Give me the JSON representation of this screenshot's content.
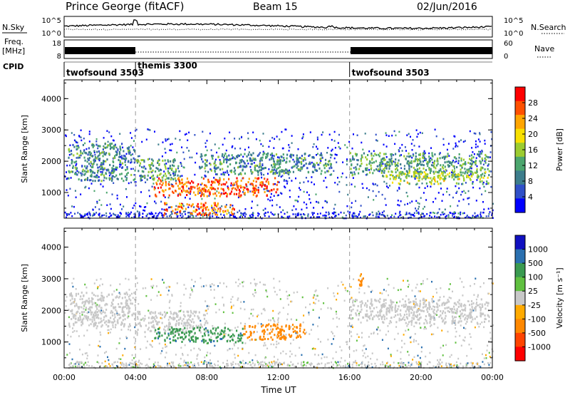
{
  "header": {
    "station": "Prince George (fitACF)",
    "beam": "Beam 15",
    "date": "02/Jun/2016"
  },
  "panel_labels": {
    "nsky": "N.Sky",
    "nsearch": "N.Search",
    "freq_line1": "Freq.",
    "freq_line2": "[MHz]",
    "nave": "Nave",
    "cpid": "CPID"
  },
  "noise_axis": {
    "left_top": "10^5",
    "left_bottom": "10^0",
    "right_top": "10^5",
    "right_bottom": "10^0"
  },
  "freq_axis": {
    "left_top": "18",
    "left_bottom": "8",
    "right_top": "60",
    "right_bottom": "0"
  },
  "cpid_segments": [
    {
      "label": "twofsound 3503",
      "start": 0,
      "end": 4
    },
    {
      "label": "themis 3300",
      "start": 4,
      "end": 16
    },
    {
      "label": "twofsound 3503",
      "start": 16,
      "end": 24
    }
  ],
  "colors": {
    "power": [
      "#0000ff",
      "#3050c8",
      "#3c7d8c",
      "#4ca66e",
      "#9ccc30",
      "#f8e000",
      "#ffa500",
      "#ff5000",
      "#ff0000"
    ],
    "velocity": [
      "#1010c0",
      "#2a70b0",
      "#3a9a50",
      "#60c040",
      "#c8c8c8",
      "#ffaa00",
      "#ff8800",
      "#ff4400",
      "#ff0000"
    ]
  },
  "chart_data": [
    {
      "type": "heatmap",
      "title": "Power",
      "xlabel": "",
      "ylabel": "Slant Range [km]",
      "x_ticks": [
        "00:00",
        "04:00",
        "08:00",
        "12:00",
        "16:00",
        "20:00",
        "00:00"
      ],
      "y_ticks": [
        "1000",
        "2000",
        "3000",
        "4000"
      ],
      "xlim": [
        0,
        24
      ],
      "ylim": [
        180,
        4600
      ],
      "colorbar": {
        "label": "Power [dB]",
        "ticks": [
          "4",
          "8",
          "12",
          "16",
          "20",
          "24",
          "28"
        ],
        "range": [
          0,
          31
        ]
      },
      "regions": [
        {
          "x": [
            0.2,
            4.0
          ],
          "y": [
            1400,
            2600
          ],
          "value": 10
        },
        {
          "x": [
            4.0,
            6.5
          ],
          "y": [
            1400,
            2100
          ],
          "value": 12
        },
        {
          "x": [
            5.0,
            12.0
          ],
          "y": [
            900,
            1500
          ],
          "value": 26
        },
        {
          "x": [
            5.5,
            9.5
          ],
          "y": [
            300,
            700
          ],
          "value": 24
        },
        {
          "x": [
            7.5,
            15.0
          ],
          "y": [
            1600,
            2300
          ],
          "value": 10
        },
        {
          "x": [
            16.0,
            23.8
          ],
          "y": [
            1500,
            2300
          ],
          "value": 12
        },
        {
          "x": [
            18.0,
            23.8
          ],
          "y": [
            1300,
            1700
          ],
          "value": 16
        }
      ]
    },
    {
      "type": "heatmap",
      "title": "Velocity",
      "xlabel": "Time UT",
      "ylabel": "Slant Range [km]",
      "x_ticks": [
        "00:00",
        "04:00",
        "08:00",
        "12:00",
        "16:00",
        "20:00",
        "00:00"
      ],
      "y_ticks": [
        "1000",
        "2000",
        "3000",
        "4000"
      ],
      "xlim": [
        0,
        24
      ],
      "ylim": [
        180,
        4600
      ],
      "colorbar": {
        "label": "Velocity [m s⁻¹]",
        "ticks": [
          "1000",
          "500",
          "100",
          "25",
          "-25",
          "-100",
          "-500",
          "-1000"
        ]
      },
      "regions": [
        {
          "x": [
            0.2,
            4.0
          ],
          "y": [
            1500,
            2600
          ],
          "value": 0
        },
        {
          "x": [
            4.0,
            8.0
          ],
          "y": [
            1300,
            2000
          ],
          "value": 0
        },
        {
          "x": [
            5.0,
            10.0
          ],
          "y": [
            1000,
            1500
          ],
          "value": 200
        },
        {
          "x": [
            10.0,
            13.5
          ],
          "y": [
            1100,
            1600
          ],
          "value": -150
        },
        {
          "x": [
            16.0,
            23.8
          ],
          "y": [
            1600,
            2400
          ],
          "value": 0
        },
        {
          "x": [
            16.3,
            16.8
          ],
          "y": [
            2800,
            3200
          ],
          "value": -120
        }
      ]
    }
  ]
}
